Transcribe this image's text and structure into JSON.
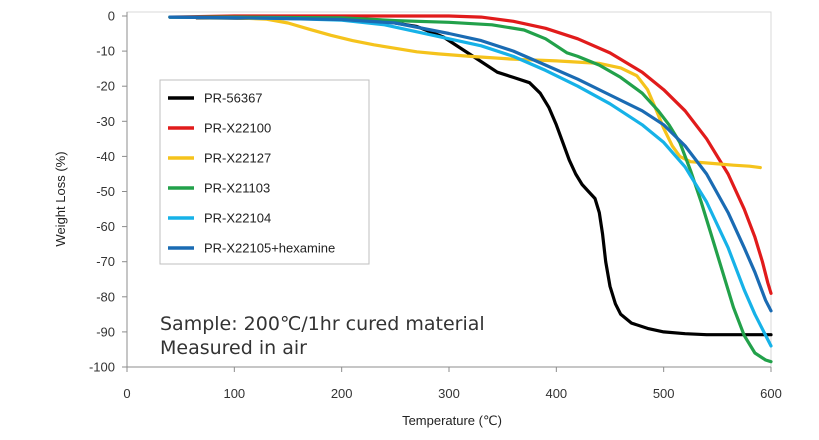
{
  "chart_data": {
    "type": "line",
    "title": "",
    "xlabel": "Temperature (℃)",
    "ylabel": "Weight Loss (%)",
    "xlim": [
      0,
      600
    ],
    "ylim": [
      -100,
      0
    ],
    "x_ticks": [
      "0",
      "100",
      "200",
      "300",
      "400",
      "500",
      "600"
    ],
    "y_ticks": [
      "0",
      "-10",
      "-20",
      "-30",
      "-40",
      "-50",
      "-60",
      "-70",
      "-80",
      "-90",
      "-100"
    ],
    "grid": false,
    "legend_position": "upper-left inside plot",
    "annotations": [
      "Sample: 200℃/1hr cured material",
      "Measured in air"
    ],
    "series": [
      {
        "name": "PR-56367",
        "color": "#000000",
        "points": [
          [
            65,
            -0.5
          ],
          [
            100,
            -0.6
          ],
          [
            150,
            -0.7
          ],
          [
            200,
            -0.9
          ],
          [
            240,
            -1.5
          ],
          [
            270,
            -3
          ],
          [
            295,
            -6
          ],
          [
            315,
            -10
          ],
          [
            330,
            -13
          ],
          [
            345,
            -16
          ],
          [
            360,
            -17.5
          ],
          [
            375,
            -19
          ],
          [
            385,
            -22
          ],
          [
            393,
            -26
          ],
          [
            400,
            -31
          ],
          [
            406,
            -36
          ],
          [
            412,
            -41
          ],
          [
            418,
            -45
          ],
          [
            424,
            -48
          ],
          [
            430,
            -50
          ],
          [
            436,
            -52
          ],
          [
            440,
            -56
          ],
          [
            443,
            -62
          ],
          [
            446,
            -70
          ],
          [
            450,
            -77
          ],
          [
            455,
            -82
          ],
          [
            460,
            -85
          ],
          [
            470,
            -87.5
          ],
          [
            485,
            -89
          ],
          [
            500,
            -90
          ],
          [
            520,
            -90.5
          ],
          [
            540,
            -90.8
          ],
          [
            560,
            -90.8
          ],
          [
            580,
            -90.8
          ],
          [
            600,
            -90.8
          ]
        ]
      },
      {
        "name": "PR-X22100",
        "color": "#e11b1b",
        "points": [
          [
            40,
            -0.3
          ],
          [
            100,
            0
          ],
          [
            200,
            0
          ],
          [
            300,
            0
          ],
          [
            330,
            -0.3
          ],
          [
            360,
            -1.5
          ],
          [
            390,
            -3.5
          ],
          [
            420,
            -6.5
          ],
          [
            450,
            -10.5
          ],
          [
            480,
            -16
          ],
          [
            500,
            -21
          ],
          [
            520,
            -27
          ],
          [
            540,
            -35
          ],
          [
            560,
            -45
          ],
          [
            575,
            -55
          ],
          [
            585,
            -63
          ],
          [
            592,
            -70
          ],
          [
            597,
            -76
          ],
          [
            600,
            -79
          ]
        ]
      },
      {
        "name": "PR-X22127",
        "color": "#f5c31c",
        "points": [
          [
            40,
            -0.3
          ],
          [
            100,
            -0.5
          ],
          [
            130,
            -0.9
          ],
          [
            150,
            -2
          ],
          [
            170,
            -3.8
          ],
          [
            190,
            -5.5
          ],
          [
            210,
            -7
          ],
          [
            230,
            -8.2
          ],
          [
            250,
            -9.2
          ],
          [
            270,
            -10.2
          ],
          [
            290,
            -10.8
          ],
          [
            320,
            -11.5
          ],
          [
            360,
            -12.3
          ],
          [
            400,
            -12.8
          ],
          [
            440,
            -13.5
          ],
          [
            460,
            -14.8
          ],
          [
            475,
            -17
          ],
          [
            485,
            -21
          ],
          [
            492,
            -26
          ],
          [
            500,
            -32
          ],
          [
            508,
            -37
          ],
          [
            515,
            -40
          ],
          [
            525,
            -41.5
          ],
          [
            545,
            -42
          ],
          [
            565,
            -42.5
          ],
          [
            580,
            -42.8
          ],
          [
            590,
            -43.2
          ]
        ]
      },
      {
        "name": "PR-X21103",
        "color": "#22a14a",
        "points": [
          [
            40,
            -0.3
          ],
          [
            100,
            -0.3
          ],
          [
            200,
            -0.5
          ],
          [
            250,
            -1.3
          ],
          [
            300,
            -1.8
          ],
          [
            340,
            -2.5
          ],
          [
            370,
            -4
          ],
          [
            390,
            -6.5
          ],
          [
            400,
            -8.5
          ],
          [
            410,
            -10.5
          ],
          [
            420,
            -11.5
          ],
          [
            440,
            -14
          ],
          [
            460,
            -17.5
          ],
          [
            480,
            -22
          ],
          [
            495,
            -27
          ],
          [
            505,
            -31
          ],
          [
            515,
            -36
          ],
          [
            525,
            -44
          ],
          [
            535,
            -53
          ],
          [
            545,
            -63
          ],
          [
            555,
            -73
          ],
          [
            565,
            -83
          ],
          [
            575,
            -91
          ],
          [
            585,
            -96
          ],
          [
            595,
            -98
          ],
          [
            600,
            -98.5
          ]
        ]
      },
      {
        "name": "PR-X22104",
        "color": "#16b2e8",
        "points": [
          [
            40,
            -0.3
          ],
          [
            100,
            -0.5
          ],
          [
            150,
            -0.7
          ],
          [
            200,
            -1.2
          ],
          [
            240,
            -2.5
          ],
          [
            270,
            -4.5
          ],
          [
            300,
            -6.5
          ],
          [
            330,
            -8.5
          ],
          [
            360,
            -11.5
          ],
          [
            390,
            -15.5
          ],
          [
            420,
            -20
          ],
          [
            450,
            -25
          ],
          [
            480,
            -31
          ],
          [
            500,
            -36
          ],
          [
            520,
            -43
          ],
          [
            540,
            -53
          ],
          [
            560,
            -66
          ],
          [
            575,
            -78
          ],
          [
            585,
            -85
          ],
          [
            595,
            -91
          ],
          [
            600,
            -94
          ]
        ]
      },
      {
        "name": "PR-X22105+hexamine",
        "color": "#1a6bb3",
        "points": [
          [
            40,
            -0.3
          ],
          [
            100,
            -0.5
          ],
          [
            150,
            -0.7
          ],
          [
            200,
            -1
          ],
          [
            250,
            -2
          ],
          [
            300,
            -5
          ],
          [
            330,
            -7
          ],
          [
            360,
            -10
          ],
          [
            390,
            -14
          ],
          [
            420,
            -18
          ],
          [
            450,
            -22.5
          ],
          [
            480,
            -27
          ],
          [
            500,
            -31
          ],
          [
            520,
            -37
          ],
          [
            540,
            -45
          ],
          [
            560,
            -56
          ],
          [
            575,
            -66
          ],
          [
            585,
            -73
          ],
          [
            595,
            -81
          ],
          [
            600,
            -84
          ]
        ]
      }
    ]
  }
}
